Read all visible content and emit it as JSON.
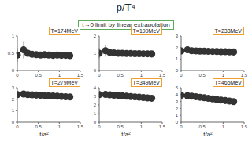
{
  "title": "p/T⁴",
  "subtitle": "t→0 limit by linear extrapolation",
  "xlabel": "t/a²",
  "chart_data": [
    {
      "type": "scatter",
      "title": "T=174MeV",
      "marker": "o",
      "color": "#333333",
      "xlim": [
        0,
        1.5
      ],
      "xticks": [
        0,
        0.5,
        1,
        1.5
      ],
      "ylim": [
        0,
        1
      ],
      "yticks": [
        0,
        0.5,
        1
      ],
      "x": [
        0,
        0.15,
        0.25,
        0.35,
        0.45,
        0.55,
        0.65,
        0.75,
        0.85,
        0.95,
        1.05,
        1.15,
        1.25
      ],
      "values": [
        0.45,
        0.6,
        0.5,
        0.47,
        0.46,
        0.45,
        0.46,
        0.45,
        0.44,
        0.45,
        0.44,
        0.44,
        0.43
      ],
      "errors": [
        0.2,
        0.25,
        0.12,
        0.08,
        0.06,
        0.05,
        0.04,
        0.04,
        0.03,
        0.03,
        0.03,
        0.03,
        0.03
      ]
    },
    {
      "type": "scatter",
      "title": "T=199MeV",
      "marker": "o",
      "color": "#333333",
      "xlim": [
        0,
        1.5
      ],
      "xticks": [
        0,
        0.5,
        1,
        1.5
      ],
      "ylim": [
        0,
        2
      ],
      "yticks": [
        0,
        1,
        2
      ],
      "x": [
        0,
        0.15,
        0.25,
        0.35,
        0.45,
        0.55,
        0.65,
        0.75,
        0.85,
        0.95,
        1.05,
        1.15,
        1.25
      ],
      "values": [
        1.0,
        1.15,
        1.05,
        1.02,
        1.0,
        1.0,
        0.99,
        0.99,
        0.98,
        0.98,
        0.97,
        0.97,
        0.96
      ],
      "errors": [
        0.3,
        0.35,
        0.18,
        0.1,
        0.08,
        0.06,
        0.05,
        0.05,
        0.04,
        0.04,
        0.04,
        0.04,
        0.04
      ]
    },
    {
      "type": "scatter",
      "title": "T=233MeV",
      "marker": "o",
      "color": "#333333",
      "xlim": [
        0,
        1.5
      ],
      "xticks": [
        0,
        0.5,
        1,
        1.5
      ],
      "ylim": [
        0,
        3
      ],
      "yticks": [
        0,
        1,
        2,
        3
      ],
      "x": [
        0,
        0.15,
        0.25,
        0.35,
        0.45,
        0.55,
        0.65,
        0.75,
        0.85,
        0.95,
        1.05,
        1.15,
        1.25
      ],
      "values": [
        1.7,
        1.8,
        1.72,
        1.7,
        1.69,
        1.68,
        1.67,
        1.66,
        1.65,
        1.64,
        1.63,
        1.62,
        1.61
      ],
      "errors": [
        0.3,
        0.3,
        0.15,
        0.1,
        0.08,
        0.06,
        0.05,
        0.05,
        0.04,
        0.04,
        0.04,
        0.04,
        0.04
      ]
    },
    {
      "type": "scatter",
      "title": "T=279MeV",
      "marker": "o",
      "color": "#333333",
      "xlim": [
        0,
        1.5
      ],
      "xticks": [
        0,
        0.5,
        1,
        1.5
      ],
      "ylim": [
        0,
        3
      ],
      "yticks": [
        0,
        1,
        2,
        3
      ],
      "x": [
        0,
        0.15,
        0.25,
        0.35,
        0.45,
        0.55,
        0.65,
        0.75,
        0.85,
        0.95,
        1.05,
        1.15,
        1.25
      ],
      "values": [
        2.4,
        2.45,
        2.4,
        2.38,
        2.36,
        2.34,
        2.32,
        2.3,
        2.28,
        2.26,
        2.24,
        2.22,
        2.2
      ],
      "errors": [
        0.25,
        0.25,
        0.12,
        0.08,
        0.06,
        0.05,
        0.04,
        0.04,
        0.04,
        0.03,
        0.03,
        0.03,
        0.03
      ]
    },
    {
      "type": "scatter",
      "title": "T=349MeV",
      "marker": "o",
      "color": "#333333",
      "xlim": [
        0,
        1.5
      ],
      "xticks": [
        0,
        0.5,
        1,
        1.5
      ],
      "ylim": [
        0,
        4
      ],
      "yticks": [
        0,
        1,
        2,
        3,
        4
      ],
      "x": [
        0,
        0.15,
        0.25,
        0.35,
        0.45,
        0.55,
        0.65,
        0.75,
        0.85,
        0.95,
        1.05,
        1.15,
        1.25
      ],
      "values": [
        3.2,
        3.22,
        3.18,
        3.14,
        3.1,
        3.06,
        3.02,
        2.98,
        2.94,
        2.9,
        2.86,
        2.82,
        2.78
      ],
      "errors": [
        0.25,
        0.2,
        0.12,
        0.08,
        0.06,
        0.05,
        0.04,
        0.04,
        0.04,
        0.03,
        0.03,
        0.03,
        0.03
      ]
    },
    {
      "type": "scatter",
      "title": "T=465MeV",
      "marker": "o",
      "color": "#333333",
      "xlim": [
        0,
        1.5
      ],
      "xticks": [
        0,
        0.5,
        1,
        1.5
      ],
      "ylim": [
        0,
        5
      ],
      "yticks": [
        0,
        1,
        2,
        3,
        4,
        5
      ],
      "x": [
        0,
        0.15,
        0.25,
        0.35,
        0.45,
        0.55,
        0.65,
        0.75,
        0.85,
        0.95,
        1.05,
        1.15,
        1.25
      ],
      "values": [
        3.9,
        3.85,
        3.78,
        3.7,
        3.62,
        3.54,
        3.46,
        3.38,
        3.3,
        3.22,
        3.14,
        3.06,
        2.98
      ],
      "errors": [
        0.3,
        0.2,
        0.12,
        0.08,
        0.06,
        0.05,
        0.04,
        0.04,
        0.04,
        0.03,
        0.03,
        0.03,
        0.03
      ]
    }
  ]
}
